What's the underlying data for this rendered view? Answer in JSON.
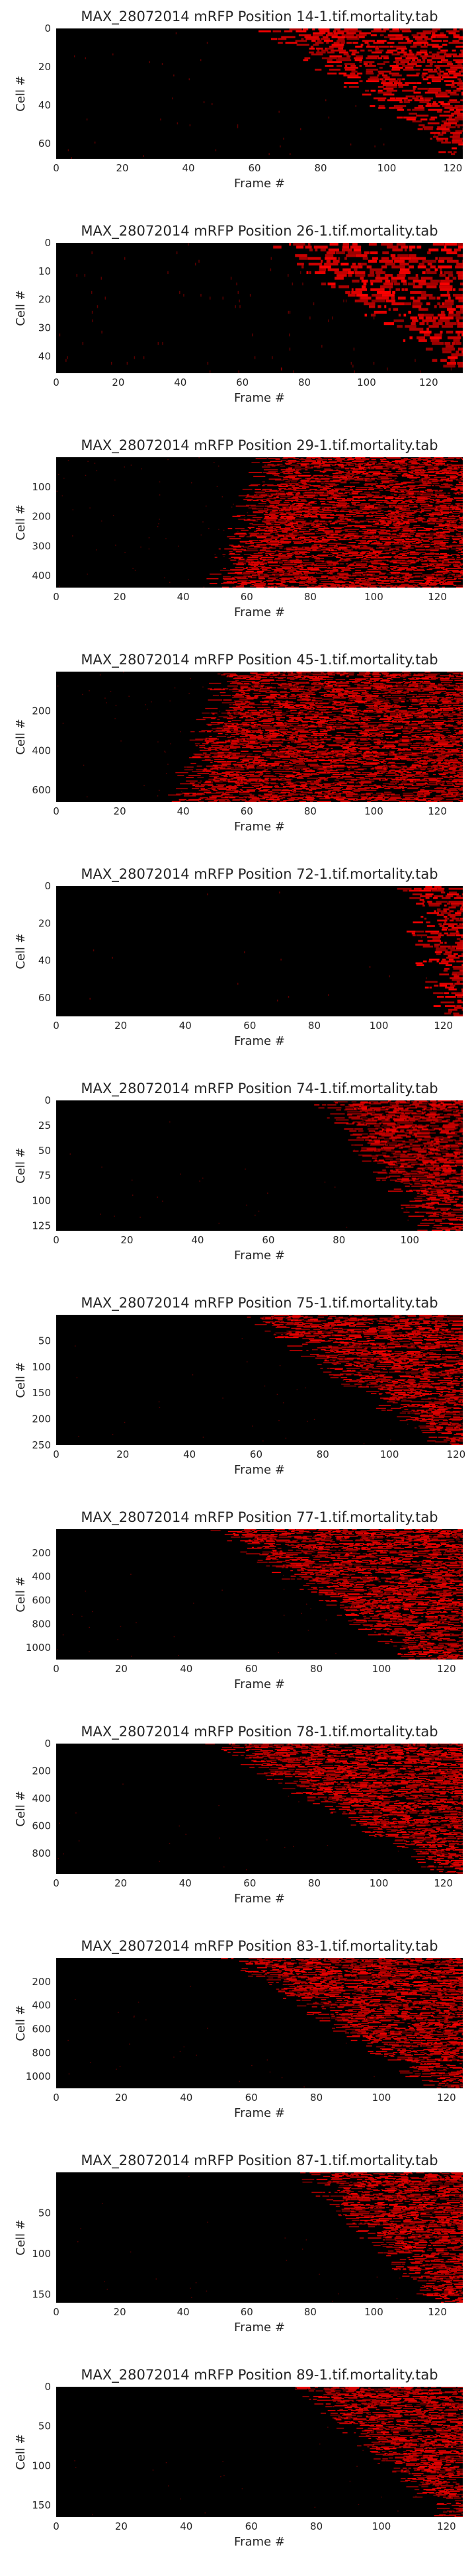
{
  "chart_data": [
    {
      "type": "heatmap",
      "title": "MAX_28072014 mRFP Position 14-1.tif.mortality.tab",
      "xlabel": "Frame #",
      "ylabel": "Cell #",
      "xlim": [
        0,
        123
      ],
      "ylim": [
        68,
        0
      ],
      "xticks": [
        0,
        20,
        40,
        60,
        80,
        100,
        120
      ],
      "yticks": [
        0,
        20,
        40,
        60
      ],
      "colormap": [
        "#000000",
        "#ff0000"
      ],
      "onset_frames": [
        66,
        124
      ],
      "noise": 0.008
    },
    {
      "type": "heatmap",
      "title": "MAX_28072014 mRFP Position 26-1.tif.mortality.tab",
      "xlabel": "Frame #",
      "ylabel": "Cell #",
      "xlim": [
        0,
        131
      ],
      "ylim": [
        46,
        0
      ],
      "xticks": [
        0,
        20,
        40,
        60,
        80,
        100,
        120
      ],
      "yticks": [
        0,
        10,
        20,
        30,
        40
      ],
      "colormap": [
        "#000000",
        "#ff0000"
      ],
      "onset_frames": [
        72,
        132
      ],
      "noise": 0.015
    },
    {
      "type": "heatmap",
      "title": "MAX_28072014 mRFP Position 29-1.tif.mortality.tab",
      "xlabel": "Frame #",
      "ylabel": "Cell #",
      "xlim": [
        0,
        128
      ],
      "ylim": [
        440,
        0
      ],
      "xticks": [
        0,
        20,
        40,
        60,
        80,
        100,
        120
      ],
      "yticks": [
        100,
        200,
        300,
        400
      ],
      "colormap": [
        "#000000",
        "#ff0000"
      ],
      "onset_frames": [
        68,
        52
      ],
      "noise": 0.01
    },
    {
      "type": "heatmap",
      "title": "MAX_28072014 mRFP Position 45-1.tif.mortality.tab",
      "xlabel": "Frame #",
      "ylabel": "Cell #",
      "xlim": [
        0,
        128
      ],
      "ylim": [
        660,
        0
      ],
      "xticks": [
        0,
        20,
        40,
        60,
        80,
        100,
        120
      ],
      "yticks": [
        200,
        400,
        600
      ],
      "colormap": [
        "#000000",
        "#ff0000"
      ],
      "onset_frames": [
        55,
        40
      ],
      "noise": 0.01
    },
    {
      "type": "heatmap",
      "title": "MAX_28072014 mRFP Position 72-1.tif.mortality.tab",
      "xlabel": "Frame #",
      "ylabel": "Cell #",
      "xlim": [
        0,
        126
      ],
      "ylim": [
        70,
        0
      ],
      "xticks": [
        0,
        20,
        40,
        60,
        80,
        100,
        120
      ],
      "yticks": [
        0,
        20,
        40,
        60
      ],
      "colormap": [
        "#000000",
        "#ff0000"
      ],
      "onset_frames": [
        110,
        122
      ],
      "noise": 0.004
    },
    {
      "type": "heatmap",
      "title": "MAX_28072014 mRFP Position 74-1.tif.mortality.tab",
      "xlabel": "Frame #",
      "ylabel": "Cell #",
      "xlim": [
        0,
        115
      ],
      "ylim": [
        130,
        0
      ],
      "xticks": [
        0,
        20,
        40,
        60,
        80,
        100
      ],
      "yticks": [
        0,
        25,
        50,
        75,
        100,
        125
      ],
      "colormap": [
        "#000000",
        "#ff0000"
      ],
      "onset_frames": [
        78,
        108
      ],
      "noise": 0.004
    },
    {
      "type": "heatmap",
      "title": "MAX_28072014 mRFP Position 75-1.tif.mortality.tab",
      "xlabel": "Frame #",
      "ylabel": "Cell #",
      "xlim": [
        0,
        122
      ],
      "ylim": [
        250,
        0
      ],
      "xticks": [
        0,
        20,
        40,
        60,
        80,
        100,
        120
      ],
      "yticks": [
        50,
        100,
        150,
        200,
        250
      ],
      "colormap": [
        "#000000",
        "#ff0000"
      ],
      "onset_frames": [
        60,
        118
      ],
      "noise": 0.005
    },
    {
      "type": "heatmap",
      "title": "MAX_28072014 mRFP Position 77-1.tif.mortality.tab",
      "xlabel": "Frame #",
      "ylabel": "Cell #",
      "xlim": [
        0,
        125
      ],
      "ylim": [
        1100,
        0
      ],
      "xticks": [
        0,
        20,
        40,
        60,
        80,
        100,
        120
      ],
      "yticks": [
        200,
        400,
        600,
        800,
        1000
      ],
      "colormap": [
        "#000000",
        "#ff0000"
      ],
      "onset_frames": [
        52,
        112
      ],
      "noise": 0.005
    },
    {
      "type": "heatmap",
      "title": "MAX_28072014 mRFP Position 78-1.tif.mortality.tab",
      "xlabel": "Frame #",
      "ylabel": "Cell #",
      "xlim": [
        0,
        126
      ],
      "ylim": [
        950,
        0
      ],
      "xticks": [
        0,
        20,
        40,
        60,
        80,
        100,
        120
      ],
      "yticks": [
        0,
        200,
        400,
        600,
        800
      ],
      "colormap": [
        "#000000",
        "#ff0000"
      ],
      "onset_frames": [
        52,
        122
      ],
      "noise": 0.005
    },
    {
      "type": "heatmap",
      "title": "MAX_28072014 mRFP Position 83-1.tif.mortality.tab",
      "xlabel": "Frame #",
      "ylabel": "Cell #",
      "xlim": [
        0,
        125
      ],
      "ylim": [
        1100,
        0
      ],
      "xticks": [
        0,
        20,
        40,
        60,
        80,
        100,
        120
      ],
      "yticks": [
        200,
        400,
        600,
        800,
        1000
      ],
      "colormap": [
        "#000000",
        "#ff0000"
      ],
      "onset_frames": [
        56,
        118
      ],
      "noise": 0.005
    },
    {
      "type": "heatmap",
      "title": "MAX_28072014 mRFP Position 87-1.tif.mortality.tab",
      "xlabel": "Frame #",
      "ylabel": "Cell #",
      "xlim": [
        0,
        128
      ],
      "ylim": [
        160,
        0
      ],
      "xticks": [
        0,
        20,
        40,
        60,
        80,
        100,
        120
      ],
      "yticks": [
        50,
        100,
        150
      ],
      "colormap": [
        "#000000",
        "#ff0000"
      ],
      "onset_frames": [
        80,
        122
      ],
      "noise": 0.004
    },
    {
      "type": "heatmap",
      "title": "MAX_28072014 mRFP Position 89-1.tif.mortality.tab",
      "xlabel": "Frame #",
      "ylabel": "Cell #",
      "xlim": [
        0,
        125
      ],
      "ylim": [
        165,
        0
      ],
      "xticks": [
        0,
        20,
        40,
        60,
        80,
        100,
        120
      ],
      "yticks": [
        0,
        50,
        100,
        150
      ],
      "colormap": [
        "#000000",
        "#ff0000"
      ],
      "onset_frames": [
        78,
        122
      ],
      "noise": 0.004
    }
  ]
}
